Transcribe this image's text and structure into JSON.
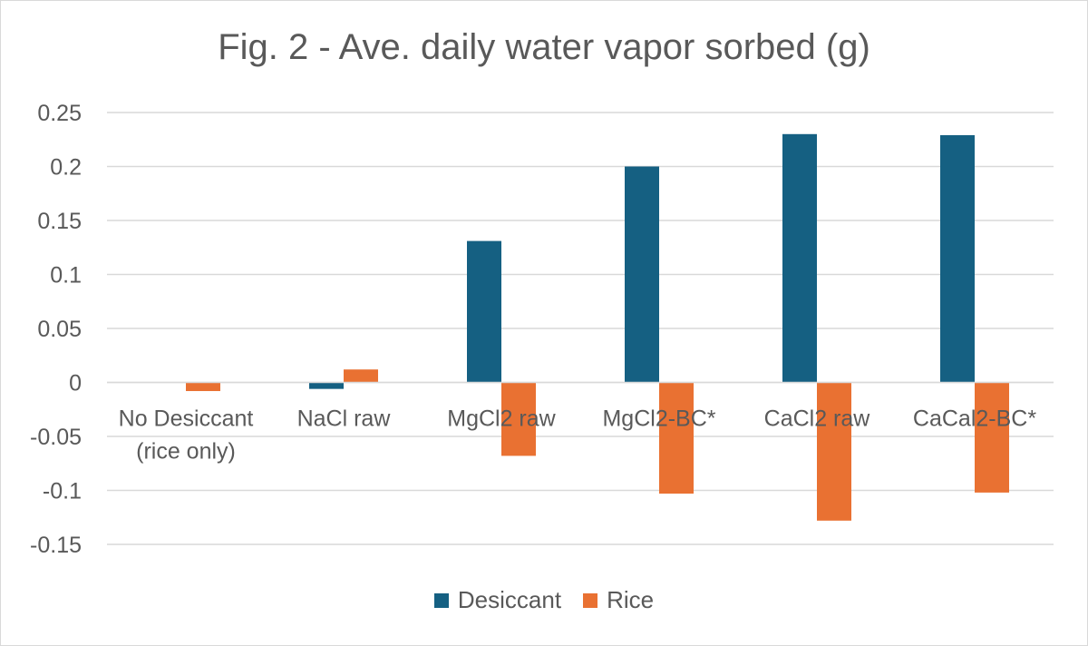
{
  "chart_data": {
    "type": "bar",
    "title": "Fig. 2 - Ave. daily water vapor sorbed (g)",
    "xlabel": "",
    "ylabel": "",
    "categories": [
      [
        "No Desiccant",
        "(rice only)"
      ],
      [
        "NaCl raw"
      ],
      [
        "MgCl2 raw"
      ],
      [
        "MgCl2-BC*"
      ],
      [
        "CaCl2 raw"
      ],
      [
        "CaCal2-BC*"
      ]
    ],
    "series": [
      {
        "name": "Desiccant",
        "color": "#156082",
        "values": [
          0,
          -0.006,
          0.131,
          0.2,
          0.23,
          0.229
        ]
      },
      {
        "name": "Rice",
        "color": "#e97132",
        "values": [
          -0.008,
          0.012,
          -0.068,
          -0.103,
          -0.128,
          -0.102
        ]
      }
    ],
    "ylim": [
      -0.15,
      0.25
    ],
    "yticks": [
      "0.25",
      "0.2",
      "0.15",
      "0.1",
      "0.05",
      "0",
      "-0.05",
      "-0.1",
      "-0.15"
    ],
    "grid": true,
    "legend_position": "bottom"
  }
}
